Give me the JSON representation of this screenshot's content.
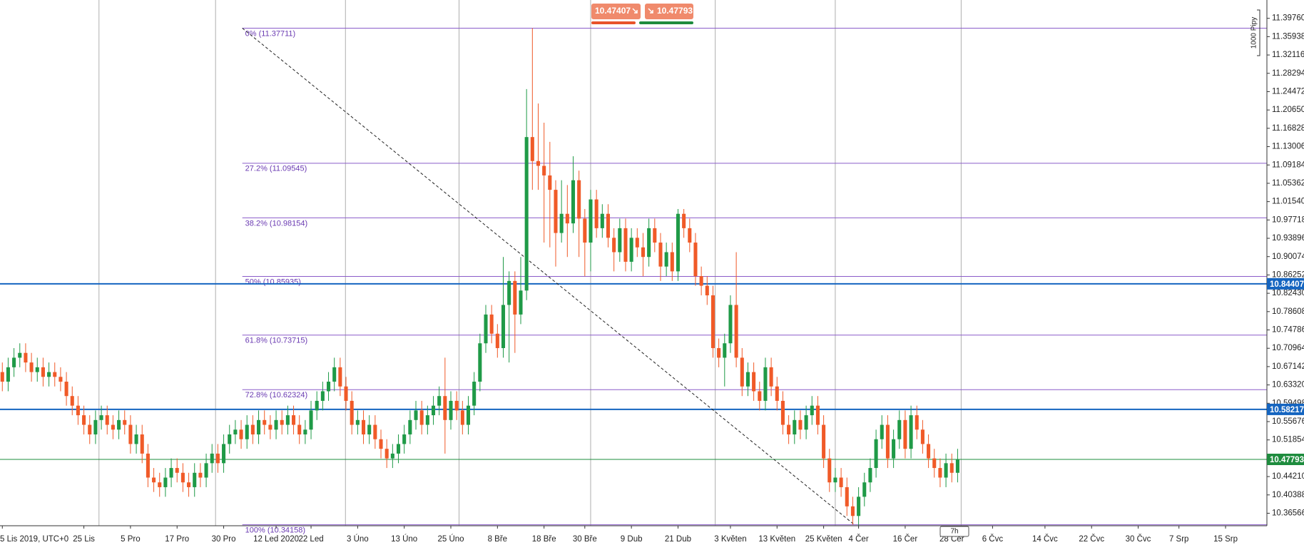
{
  "chart_data": {
    "type": "candlestick",
    "colors": {
      "up": "#1f9a47",
      "down": "#f05a28",
      "fib": "#8a5cc9",
      "trend": "#222222",
      "grid": "#9a9a9a"
    },
    "xlim": [
      -0.4,
      217.1
    ],
    "ylim": [
      10.3396,
      11.4358
    ],
    "yticks": [
      {
        "value": 11.3976,
        "label": "11.39760"
      },
      11.35938,
      11.32116,
      11.28294,
      11.24472,
      {
        "value": 11.2065,
        "label": "11.20650"
      },
      11.16828,
      11.13006,
      11.09184,
      11.05362,
      {
        "value": 11.0154,
        "label": "11.01540"
      },
      10.97718,
      10.93896,
      10.90074,
      10.86252,
      {
        "value": 10.8243,
        "label": "10.82430"
      },
      10.78608,
      10.74786,
      10.70964,
      10.67142,
      {
        "value": 10.6332,
        "label": "10.63320"
      },
      10.59498,
      10.55676,
      10.51854,
      {
        "value": 10.4421,
        "label": "10.44210"
      },
      10.40388,
      10.36566
    ],
    "xticks": [
      {
        "value": 0,
        "label": "5 Lis 2019, UTC+0"
      },
      {
        "value": 14,
        "label": "25 Lis"
      },
      {
        "value": 22,
        "label": "5 Pro"
      },
      {
        "value": 30,
        "label": "17 Pro"
      },
      {
        "value": 38,
        "label": "30 Pro"
      },
      {
        "value": 47,
        "label": "12 Led 2020"
      },
      {
        "value": 53,
        "label": "22 Led"
      },
      {
        "value": 61,
        "label": "3 Úno"
      },
      {
        "value": 69,
        "label": "13 Úno"
      },
      {
        "value": 77,
        "label": "25 Úno"
      },
      {
        "value": 85,
        "label": "8 Bře"
      },
      {
        "value": 93,
        "label": "18 Bře"
      },
      {
        "value": 100,
        "label": "30 Bře"
      },
      {
        "value": 108,
        "label": "9 Dub"
      },
      {
        "value": 116,
        "label": "21 Dub"
      },
      {
        "value": 125,
        "label": "3 Květen"
      },
      {
        "value": 133,
        "label": "13 Květen"
      },
      {
        "value": 141,
        "label": "25 Květen"
      },
      {
        "value": 147,
        "label": "4 Čer"
      },
      {
        "value": 155,
        "label": "16 Čer"
      },
      {
        "value": 163,
        "label": "28 Čer"
      },
      {
        "value": 170,
        "label": "6 Čvc"
      },
      {
        "value": 179,
        "label": "14 Čvc"
      },
      {
        "value": 187,
        "label": "22 Čvc"
      },
      {
        "value": 195,
        "label": "30 Čvc"
      },
      {
        "value": 202,
        "label": "7 Srp"
      },
      {
        "value": 210,
        "label": "15 Srp"
      }
    ],
    "xgrid": [
      16.6,
      36.6,
      58.9,
      78.4,
      101,
      122.4,
      143,
      164.6
    ],
    "fib_levels": [
      {
        "label": "0% (11.37711)",
        "value": 11.37711
      },
      {
        "label": "27.2% (11.09545)",
        "value": 11.09545
      },
      {
        "label": "38.2% (10.98154)",
        "value": 10.98154
      },
      {
        "label": "50% (10.85935)",
        "value": 10.85935
      },
      {
        "label": "61.8% (10.73715)",
        "value": 10.73715
      },
      {
        "label": "72.8% (10.62324)",
        "value": 10.62324
      },
      {
        "label": "100% (10.34158)",
        "value": 10.34158
      }
    ],
    "trendline": {
      "x": [
        41.2,
        146.3
      ],
      "y": [
        11.37711,
        10.34158
      ]
    },
    "hlines": [
      {
        "value": 10.84407,
        "color": "#1565c0"
      },
      {
        "value": 10.58217,
        "color": "#1565c0"
      }
    ],
    "current_price": {
      "value": 10.47793,
      "color": "#1e8c3e"
    },
    "quote": {
      "sell": 10.47407,
      "buy": 10.47793
    },
    "scale_label": "1000 Pipy",
    "timer_label": "7h",
    "ohlc": [
      [
        10.66,
        10.68,
        10.62,
        10.64
      ],
      [
        10.64,
        10.69,
        10.62,
        10.67
      ],
      [
        10.67,
        10.71,
        10.65,
        10.69
      ],
      [
        10.69,
        10.72,
        10.67,
        10.7
      ],
      [
        10.7,
        10.72,
        10.66,
        10.68
      ],
      [
        10.68,
        10.7,
        10.64,
        10.66
      ],
      [
        10.66,
        10.69,
        10.64,
        10.67
      ],
      [
        10.67,
        10.69,
        10.63,
        10.65
      ],
      [
        10.65,
        10.68,
        10.63,
        10.66
      ],
      [
        10.66,
        10.68,
        10.63,
        10.65
      ],
      [
        10.65,
        10.67,
        10.62,
        10.64
      ],
      [
        10.64,
        10.66,
        10.59,
        10.61
      ],
      [
        10.61,
        10.63,
        10.57,
        10.59
      ],
      [
        10.59,
        10.61,
        10.55,
        10.57
      ],
      [
        10.57,
        10.59,
        10.53,
        10.55
      ],
      [
        10.55,
        10.57,
        10.51,
        10.53
      ],
      [
        10.53,
        10.58,
        10.51,
        10.56
      ],
      [
        10.56,
        10.59,
        10.54,
        10.57
      ],
      [
        10.57,
        10.59,
        10.53,
        10.55
      ],
      [
        10.55,
        10.57,
        10.52,
        10.54
      ],
      [
        10.54,
        10.58,
        10.52,
        10.56
      ],
      [
        10.56,
        10.58,
        10.53,
        10.55
      ],
      [
        10.55,
        10.57,
        10.49,
        10.51
      ],
      [
        10.51,
        10.55,
        10.49,
        10.53
      ],
      [
        10.53,
        10.55,
        10.47,
        10.49
      ],
      [
        10.49,
        10.51,
        10.42,
        10.44
      ],
      [
        10.44,
        10.46,
        10.41,
        10.43
      ],
      [
        10.43,
        10.45,
        10.4,
        10.42
      ],
      [
        10.42,
        10.46,
        10.4,
        10.44
      ],
      [
        10.44,
        10.48,
        10.42,
        10.46
      ],
      [
        10.46,
        10.48,
        10.43,
        10.45
      ],
      [
        10.45,
        10.47,
        10.41,
        10.43
      ],
      [
        10.43,
        10.45,
        10.4,
        10.42
      ],
      [
        10.42,
        10.47,
        10.4,
        10.45
      ],
      [
        10.45,
        10.47,
        10.42,
        10.44
      ],
      [
        10.44,
        10.49,
        10.42,
        10.47
      ],
      [
        10.47,
        10.51,
        10.45,
        10.49
      ],
      [
        10.49,
        10.51,
        10.45,
        10.47
      ],
      [
        10.47,
        10.53,
        10.45,
        10.51
      ],
      [
        10.51,
        10.55,
        10.49,
        10.53
      ],
      [
        10.53,
        10.56,
        10.51,
        10.54
      ],
      [
        10.54,
        10.56,
        10.5,
        10.52
      ],
      [
        10.52,
        10.57,
        10.5,
        10.55
      ],
      [
        10.55,
        10.57,
        10.51,
        10.53
      ],
      [
        10.53,
        10.58,
        10.51,
        10.56
      ],
      [
        10.56,
        10.58,
        10.53,
        10.55
      ],
      [
        10.55,
        10.57,
        10.52,
        10.54
      ],
      [
        10.54,
        10.58,
        10.52,
        10.56
      ],
      [
        10.56,
        10.58,
        10.53,
        10.55
      ],
      [
        10.55,
        10.59,
        10.53,
        10.57
      ],
      [
        10.57,
        10.59,
        10.53,
        10.55
      ],
      [
        10.55,
        10.57,
        10.51,
        10.53
      ],
      [
        10.53,
        10.56,
        10.51,
        10.54
      ],
      [
        10.54,
        10.6,
        10.52,
        10.58
      ],
      [
        10.58,
        10.62,
        10.56,
        10.6
      ],
      [
        10.6,
        10.64,
        10.58,
        10.62
      ],
      [
        10.62,
        10.66,
        10.6,
        10.64
      ],
      [
        10.64,
        10.69,
        10.62,
        10.67
      ],
      [
        10.67,
        10.69,
        10.61,
        10.63
      ],
      [
        10.63,
        10.65,
        10.58,
        10.6
      ],
      [
        10.6,
        10.62,
        10.53,
        10.55
      ],
      [
        10.55,
        10.58,
        10.53,
        10.56
      ],
      [
        10.56,
        10.58,
        10.51,
        10.53
      ],
      [
        10.53,
        10.57,
        10.51,
        10.55
      ],
      [
        10.55,
        10.57,
        10.5,
        10.52
      ],
      [
        10.52,
        10.54,
        10.48,
        10.5
      ],
      [
        10.5,
        10.52,
        10.46,
        10.48
      ],
      [
        10.48,
        10.51,
        10.46,
        10.49
      ],
      [
        10.49,
        10.53,
        10.47,
        10.51
      ],
      [
        10.51,
        10.55,
        10.49,
        10.53
      ],
      [
        10.53,
        10.58,
        10.51,
        10.56
      ],
      [
        10.56,
        10.6,
        10.54,
        10.58
      ],
      [
        10.58,
        10.6,
        10.53,
        10.55
      ],
      [
        10.55,
        10.59,
        10.53,
        10.57
      ],
      [
        10.57,
        10.61,
        10.55,
        10.59
      ],
      [
        10.59,
        10.63,
        10.57,
        10.61
      ],
      [
        10.61,
        10.69,
        10.49,
        10.56
      ],
      [
        10.56,
        10.62,
        10.54,
        10.6
      ],
      [
        10.6,
        10.62,
        10.56,
        10.58
      ],
      [
        10.58,
        10.6,
        10.53,
        10.55
      ],
      [
        10.55,
        10.61,
        10.53,
        10.59
      ],
      [
        10.59,
        10.66,
        10.57,
        10.64
      ],
      [
        10.64,
        10.74,
        10.62,
        10.72
      ],
      [
        10.72,
        10.8,
        10.7,
        10.78
      ],
      [
        10.78,
        10.8,
        10.72,
        10.74
      ],
      [
        10.74,
        10.76,
        10.69,
        10.71
      ],
      [
        10.71,
        10.9,
        10.69,
        10.8
      ],
      [
        10.8,
        10.87,
        10.68,
        10.85
      ],
      [
        10.85,
        10.87,
        10.7,
        10.78
      ],
      [
        10.78,
        10.9,
        10.76,
        10.83
      ],
      [
        10.83,
        11.25,
        10.81,
        11.15
      ],
      [
        11.15,
        11.377,
        11.04,
        11.1
      ],
      [
        11.1,
        11.22,
        11.04,
        11.09
      ],
      [
        11.09,
        11.18,
        10.93,
        11.07
      ],
      [
        11.07,
        11.14,
        10.92,
        11.04
      ],
      [
        11.04,
        11.06,
        10.88,
        10.95
      ],
      [
        10.95,
        11.06,
        10.93,
        10.99
      ],
      [
        10.99,
        11.05,
        10.9,
        10.97
      ],
      [
        10.97,
        11.11,
        10.95,
        11.06
      ],
      [
        11.06,
        11.08,
        10.9,
        10.98
      ],
      [
        10.98,
        11.0,
        10.86,
        10.93
      ],
      [
        10.93,
        11.04,
        10.87,
        11.02
      ],
      [
        11.02,
        11.04,
        10.94,
        10.96
      ],
      [
        10.96,
        11.01,
        10.94,
        10.99
      ],
      [
        10.99,
        11.01,
        10.92,
        10.94
      ],
      [
        10.94,
        10.96,
        10.87,
        10.91
      ],
      [
        10.91,
        10.98,
        10.89,
        10.96
      ],
      [
        10.96,
        10.98,
        10.87,
        10.89
      ],
      [
        10.89,
        10.96,
        10.87,
        10.94
      ],
      [
        10.94,
        10.96,
        10.9,
        10.92
      ],
      [
        10.92,
        10.95,
        10.86,
        10.9
      ],
      [
        10.9,
        10.98,
        10.88,
        10.96
      ],
      [
        10.96,
        10.98,
        10.91,
        10.93
      ],
      [
        10.93,
        10.95,
        10.85,
        10.88
      ],
      [
        10.88,
        10.93,
        10.86,
        10.91
      ],
      [
        10.91,
        10.93,
        10.85,
        10.87
      ],
      [
        10.87,
        11.0,
        10.85,
        10.99
      ],
      [
        10.99,
        11.0,
        10.94,
        10.96
      ],
      [
        10.96,
        10.98,
        10.91,
        10.93
      ],
      [
        10.93,
        10.95,
        10.84,
        10.86
      ],
      [
        10.86,
        10.88,
        10.82,
        10.84
      ],
      [
        10.84,
        10.86,
        10.8,
        10.82
      ],
      [
        10.82,
        10.84,
        10.69,
        10.71
      ],
      [
        10.71,
        10.73,
        10.67,
        10.69
      ],
      [
        10.69,
        10.74,
        10.63,
        10.72
      ],
      [
        10.72,
        10.82,
        10.7,
        10.8
      ],
      [
        10.8,
        10.91,
        10.67,
        10.69
      ],
      [
        10.69,
        10.71,
        10.61,
        10.63
      ],
      [
        10.63,
        10.68,
        10.61,
        10.66
      ],
      [
        10.66,
        10.68,
        10.6,
        10.62
      ],
      [
        10.62,
        10.64,
        10.58,
        10.6
      ],
      [
        10.6,
        10.69,
        10.58,
        10.67
      ],
      [
        10.67,
        10.69,
        10.61,
        10.63
      ],
      [
        10.63,
        10.65,
        10.58,
        10.6
      ],
      [
        10.6,
        10.62,
        10.53,
        10.55
      ],
      [
        10.55,
        10.57,
        10.51,
        10.53
      ],
      [
        10.53,
        10.58,
        10.51,
        10.56
      ],
      [
        10.56,
        10.58,
        10.52,
        10.54
      ],
      [
        10.54,
        10.59,
        10.52,
        10.57
      ],
      [
        10.57,
        10.61,
        10.55,
        10.59
      ],
      [
        10.59,
        10.61,
        10.53,
        10.55
      ],
      [
        10.55,
        10.57,
        10.46,
        10.48
      ],
      [
        10.48,
        10.5,
        10.41,
        10.43
      ],
      [
        10.43,
        10.46,
        10.41,
        10.44
      ],
      [
        10.44,
        10.46,
        10.4,
        10.42
      ],
      [
        10.42,
        10.44,
        10.36,
        10.38
      ],
      [
        10.38,
        10.4,
        10.342,
        10.36
      ],
      [
        10.36,
        10.42,
        10.34,
        10.4
      ],
      [
        10.4,
        10.45,
        10.38,
        10.43
      ],
      [
        10.43,
        10.48,
        10.41,
        10.46
      ],
      [
        10.46,
        10.54,
        10.44,
        10.52
      ],
      [
        10.52,
        10.57,
        10.5,
        10.55
      ],
      [
        10.55,
        10.57,
        10.46,
        10.48
      ],
      [
        10.48,
        10.54,
        10.46,
        10.52
      ],
      [
        10.52,
        10.58,
        10.5,
        10.56
      ],
      [
        10.56,
        10.58,
        10.48,
        10.5
      ],
      [
        10.5,
        10.59,
        10.48,
        10.57
      ],
      [
        10.57,
        10.59,
        10.52,
        10.54
      ],
      [
        10.54,
        10.56,
        10.49,
        10.51
      ],
      [
        10.51,
        10.53,
        10.46,
        10.48
      ],
      [
        10.48,
        10.5,
        10.44,
        10.46
      ],
      [
        10.46,
        10.48,
        10.42,
        10.44
      ],
      [
        10.44,
        10.49,
        10.42,
        10.47
      ],
      [
        10.47,
        10.49,
        10.43,
        10.45
      ],
      [
        10.45,
        10.5,
        10.43,
        10.47793
      ]
    ]
  }
}
